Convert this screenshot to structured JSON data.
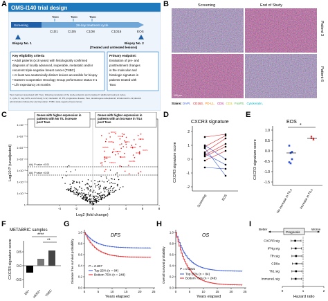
{
  "letters": {
    "A": "A",
    "B": "B",
    "C": "C",
    "D": "D",
    "E": "E",
    "F": "F",
    "G": "G",
    "H": "H",
    "I": "I"
  },
  "colors": {
    "header_blue": "#1f79bd",
    "red": "#e41a1c",
    "blue": "#2b4fd6",
    "grey": "#888888"
  },
  "panelA": {
    "title": "OMS-I140 trial design",
    "screening": "Screening",
    "cycle": "28-day treatment cycle",
    "tavo": "Tavo",
    "c1d1": "C1D1",
    "c1d5": "C1D5",
    "c1d8": "C1D8",
    "c1d15": "C1D15",
    "eos": "EOS",
    "biopsy1": "Biopsy No. 1",
    "biopsy2": "Biopsy No. 2",
    "biopsy2_sub": "(Treated and untreated lesions)",
    "elig_title": "Key eligibility criteria",
    "elig": [
      "Adult patients (≥18 years) with histologically confirmed",
      "diagnosis of locally advanced, inoperable, metastatic and/or",
      "recurrent triple-negative breast cancer (TNBC)",
      "At least two anatomically distinct lesions accessible for biopsy",
      "Eastern Cooperative Oncology Group performance status 0-1",
      "Life expectancy ≥6 months"
    ],
    "endpoint_title": "Primary endpoint:",
    "endpoint": [
      "Evaluation of pre- and",
      "posttreatment changes",
      "in the molecular and",
      "histologic signature in",
      "patients treated with",
      "Tavo"
    ],
    "footnote": [
      "Tavo treatment associated with: Tavo, following completion of the study endpoints and completed 3 additional treatment cycles.",
      "C, cycle; D, day; EOS, end of study; IL12, interleukin 12; PD, progressive disease; Tavo, tavokinogene telseplasmid, intratumoral IL-12 plasmid",
      "administration followed by electroporation; TNBC, triple-negative breast cancer."
    ]
  },
  "panelB": {
    "col1": "Screening",
    "col2": "End of Study",
    "row1": "Patient 3",
    "row2": "Patient 6",
    "scalebar": "100 µm",
    "stains_label": "Stains:",
    "stains": [
      {
        "name": "DAPI",
        "color": "#3a5bd9"
      },
      {
        "name": "CD163",
        "color": "#e41a1c"
      },
      {
        "name": "PD-L1",
        "color": "#ff7f00"
      },
      {
        "name": "CD8",
        "color": "#c51b8a"
      },
      {
        "name": "CD3",
        "color": "#d4c21a"
      },
      {
        "name": "FoxP3",
        "color": "#4daf4a"
      },
      {
        "name": "Cytokeratin",
        "color": "#00b7c7"
      }
    ]
  },
  "panelC": {
    "label_left": "Genes with higher expression in patients with No TIL increase post Tavo",
    "label_right": "Genes with higher expression in patients with an increase in TILs post Tavo",
    "ylabel": "Log10 P (unadjusted)",
    "xlabel": "Log2 (fold change)",
    "adj1": "Adj. P value <0.01",
    "adj2": "Adj. P value <0.05",
    "yticks": [
      "1",
      "1×10⁻¹",
      "1×10⁻²",
      "1×10⁻³",
      "1×10⁻⁴",
      "1×10⁻⁵",
      "1×10⁻⁶",
      "1×10⁻⁷"
    ],
    "xticks": [
      "-4",
      "-2",
      "0",
      "2",
      "4",
      "6",
      "8"
    ],
    "genes": [
      "NKG7",
      "CCL5",
      "CD8A",
      "PRF1",
      "GZMA",
      "GZMK",
      "HLA-DRA",
      "IFNG",
      "CXCL9",
      "TLR8",
      "KLRB1",
      "TBX21",
      "CD3E",
      "ICOS"
    ]
  },
  "panelD": {
    "title": "CXCR3 signature",
    "ylabel": "CXCR3 signature score",
    "xticks": [
      "Screening",
      "EOS"
    ],
    "yticks": [
      "2",
      "1",
      "0",
      "-1",
      "-2"
    ]
  },
  "panelE": {
    "title": "EOS",
    "ylabel": "CXCR3 signature score",
    "star": "*",
    "xticks": [
      "No increase in TILs",
      "Increase in TILs"
    ],
    "yticks": [
      "1.0",
      "0.5",
      "0.0",
      "-0.5",
      "-1.0",
      "-1.5"
    ]
  },
  "panelF": {
    "title": "METABRIC samples",
    "ylabel": "CXCR3 signature score",
    "sig1": "****",
    "sig2": "**",
    "xticks": [
      "ER+",
      "HER2+",
      "TNBC"
    ],
    "yticks": [
      "0.5",
      "0.0",
      "-0.5"
    ]
  },
  "panelG": {
    "title": "DFS",
    "ylabel": "Disease free survival probability",
    "xlabel": "Years elapsed",
    "p": "P = 0.007",
    "top": "Top 25% (n = 84)",
    "bottom": "Bottom 75% (n = 248)",
    "xticks": [
      "0",
      "5",
      "10",
      "15",
      "20",
      "25"
    ],
    "yticks": [
      "1.0",
      "0.8",
      "0.6",
      "0.4",
      "0.2",
      "0.0"
    ]
  },
  "panelH": {
    "title": "OS",
    "ylabel": "Overall survival probability",
    "xlabel": "Years elapsed",
    "p": "P = 0.0041",
    "top": "Top 25% (n = 84)",
    "bottom": "Bottom 75% (n = 248)",
    "xticks": [
      "0",
      "5",
      "10",
      "15",
      "20",
      "25"
    ],
    "yticks": [
      "1.0",
      "0.8",
      "0.6",
      "0.4",
      "0.2",
      "0.0"
    ]
  },
  "panelI": {
    "better": "Better",
    "worse": "Worse",
    "prognosis": "Prognosis",
    "xlabel": "Hazard ratio",
    "xticks": [
      "0",
      "1",
      "2"
    ],
    "rows": [
      "CXCR3 sig",
      "IFNg sig",
      "Tfh sig",
      "CD8a",
      "Th1 sig",
      "Immune1 sig"
    ],
    "hr": [
      0.62,
      0.64,
      0.66,
      0.68,
      0.66,
      0.64
    ],
    "lo": [
      0.42,
      0.44,
      0.46,
      0.48,
      0.46,
      0.44
    ],
    "hi": [
      0.9,
      0.92,
      0.94,
      0.95,
      0.94,
      0.93
    ]
  }
}
